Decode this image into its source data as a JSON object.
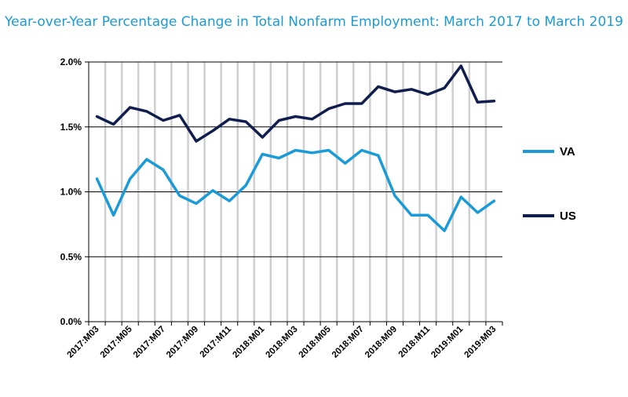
{
  "chart_data": {
    "type": "line",
    "title": "Year-over-Year Percentage Change in Total Nonfarm Employment: March 2017 to March 2019",
    "xlabel": "",
    "ylabel": "",
    "ylim": [
      0,
      2
    ],
    "y_ticks": [
      "0.0%",
      "0.5%",
      "1.0%",
      "1.5%",
      "2.0%"
    ],
    "x": [
      "2017:M03",
      "2017:M04",
      "2017:M05",
      "2017:M06",
      "2017:M07",
      "2017:M08",
      "2017:M09",
      "2017:M10",
      "2017:M11",
      "2017:M12",
      "2018:M01",
      "2018:M02",
      "2018:M03",
      "2018:M04",
      "2018:M05",
      "2018:M06",
      "2018:M07",
      "2018:M08",
      "2018:M09",
      "2018:M10",
      "2018:M11",
      "2018:M12",
      "2019:M01",
      "2019:M02",
      "2019:M03"
    ],
    "x_tick_labels": [
      "2017:M03",
      "2017:M05",
      "2017:M07",
      "2017:M09",
      "2017:M11",
      "2018:M01",
      "2018:M03",
      "2018:M05",
      "2018:M07",
      "2018:M09",
      "2018:M11",
      "2019:M01",
      "2019:M03"
    ],
    "grid": "horizontal major gridlines, vertical gridlines at each month",
    "legend_position": "right",
    "series": [
      {
        "name": "VA",
        "color": "#1a9bd7",
        "values": [
          1.1,
          0.82,
          1.1,
          1.25,
          1.17,
          0.97,
          0.91,
          1.01,
          0.93,
          1.05,
          1.29,
          1.26,
          1.32,
          1.3,
          1.32,
          1.22,
          1.32,
          1.28,
          0.97,
          0.82,
          0.82,
          0.7,
          0.96,
          0.84,
          0.93
        ]
      },
      {
        "name": "US",
        "color": "#0f1e4f",
        "values": [
          1.58,
          1.52,
          1.65,
          1.62,
          1.55,
          1.59,
          1.39,
          1.47,
          1.56,
          1.54,
          1.42,
          1.55,
          1.58,
          1.56,
          1.64,
          1.68,
          1.68,
          1.81,
          1.77,
          1.79,
          1.75,
          1.8,
          1.97,
          1.69,
          1.7
        ]
      }
    ]
  }
}
